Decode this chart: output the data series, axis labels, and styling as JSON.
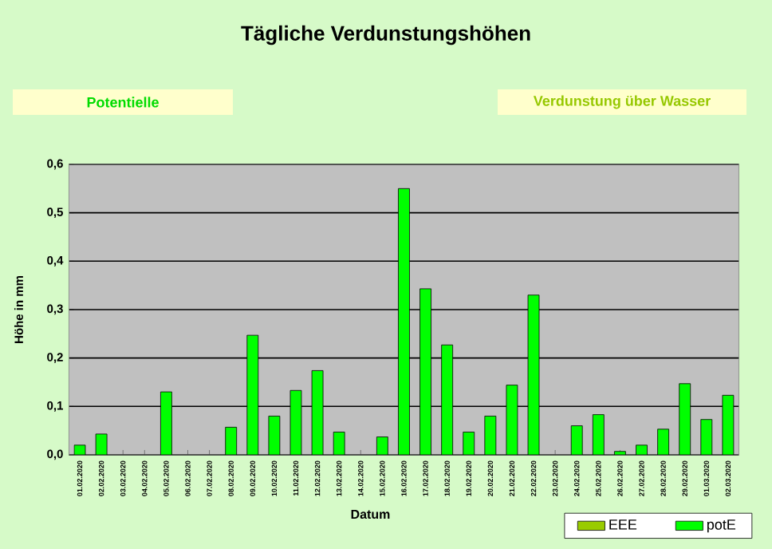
{
  "chart_data": {
    "type": "bar",
    "title": "Tägliche Verdunstungshöhen",
    "xlabel": "Datum",
    "ylabel": "Höhe in mm",
    "annotations": [
      "Potentielle",
      "Verdunstung über Wasser"
    ],
    "categories": [
      "01.02.2020",
      "02.02.2020",
      "03.02.2020",
      "04.02.2020",
      "05.02.2020",
      "06.02.2020",
      "07.02.2020",
      "08.02.2020",
      "09.02.2020",
      "10.02.2020",
      "11.02.2020",
      "12.02.2020",
      "13.02.2020",
      "14.02.2020",
      "15.02.2020",
      "16.02.2020",
      "17.02.2020",
      "18.02.2020",
      "19.02.2020",
      "20.02.2020",
      "21.02.2020",
      "22.02.2020",
      "23.02.2020",
      "24.02.2020",
      "25.02.2020",
      "26.02.2020",
      "27.02.2020",
      "28.02.2020",
      "29.02.2020",
      "01.03.2020",
      "02.03.2020"
    ],
    "series": [
      {
        "name": "EEE",
        "color": "#99cc00",
        "values": [
          null,
          null,
          null,
          null,
          null,
          null,
          null,
          null,
          null,
          null,
          null,
          null,
          null,
          null,
          null,
          null,
          null,
          null,
          null,
          null,
          null,
          null,
          null,
          null,
          null,
          null,
          null,
          null,
          null,
          null,
          null
        ]
      },
      {
        "name": "potE",
        "color": "#00ff00",
        "values": [
          0.02,
          0.043,
          null,
          null,
          0.13,
          null,
          null,
          0.057,
          0.247,
          0.08,
          0.133,
          0.174,
          0.047,
          null,
          0.037,
          0.55,
          0.343,
          0.227,
          0.047,
          0.08,
          0.144,
          0.33,
          null,
          0.06,
          0.083,
          0.007,
          0.02,
          0.053,
          0.147,
          0.073,
          0.123
        ]
      }
    ],
    "ylim": [
      0,
      0.6
    ],
    "yticks": [
      {
        "value": 0,
        "label": "0,0"
      },
      {
        "value": 0.1,
        "label": "0,1"
      },
      {
        "value": 0.2,
        "label": "0,2"
      },
      {
        "value": 0.3,
        "label": "0,3"
      },
      {
        "value": 0.4,
        "label": "0,4"
      },
      {
        "value": 0.5,
        "label": "0,5"
      },
      {
        "value": 0.6,
        "label": "0,6"
      }
    ],
    "grid": "y",
    "legend": "bottom right"
  }
}
